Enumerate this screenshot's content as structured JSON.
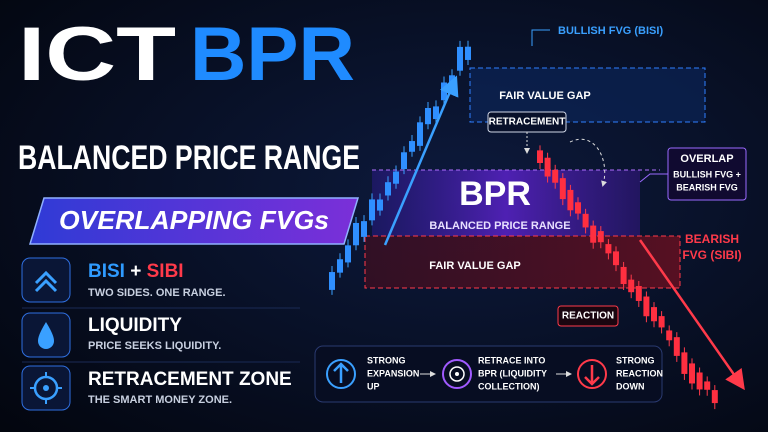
{
  "title": {
    "line1": "ICT",
    "line2": "BPR",
    "subtitle": "BALANCED PRICE RANGE",
    "badge": "OVERLAPPING FVGs"
  },
  "features": [
    {
      "title_parts": [
        "BISI",
        "+",
        "SIBI"
      ],
      "desc": "TWO SIDES. ONE RANGE."
    },
    {
      "title": "LIQUIDITY",
      "desc": "PRICE SEEKS LIQUIDITY."
    },
    {
      "title": "RETRACEMENT ZONE",
      "desc": "THE SMART MONEY ZONE."
    }
  ],
  "diagram": {
    "bullish_fvg": "BULLISH FVG (BISI)",
    "fvg_top": "FAIR VALUE GAP",
    "retracement": "RETRACEMENT",
    "bpr": "BPR",
    "bpr_sub": "BALANCED PRICE RANGE",
    "fvg_bottom": "FAIR VALUE GAP",
    "overlap": [
      "OVERLAP",
      "BULLISH FVG +",
      "BEARISH FVG"
    ],
    "bearish_fvg": [
      "BEARISH",
      "FVG (SIBI)"
    ],
    "reaction": "REACTION"
  },
  "steps": [
    [
      "STRONG",
      "EXPANSION",
      "UP"
    ],
    [
      "RETRACE INTO",
      "BPR (LIQUIDITY",
      "COLLECTION)"
    ],
    [
      "STRONG",
      "REACTION",
      "DOWN"
    ]
  ]
}
